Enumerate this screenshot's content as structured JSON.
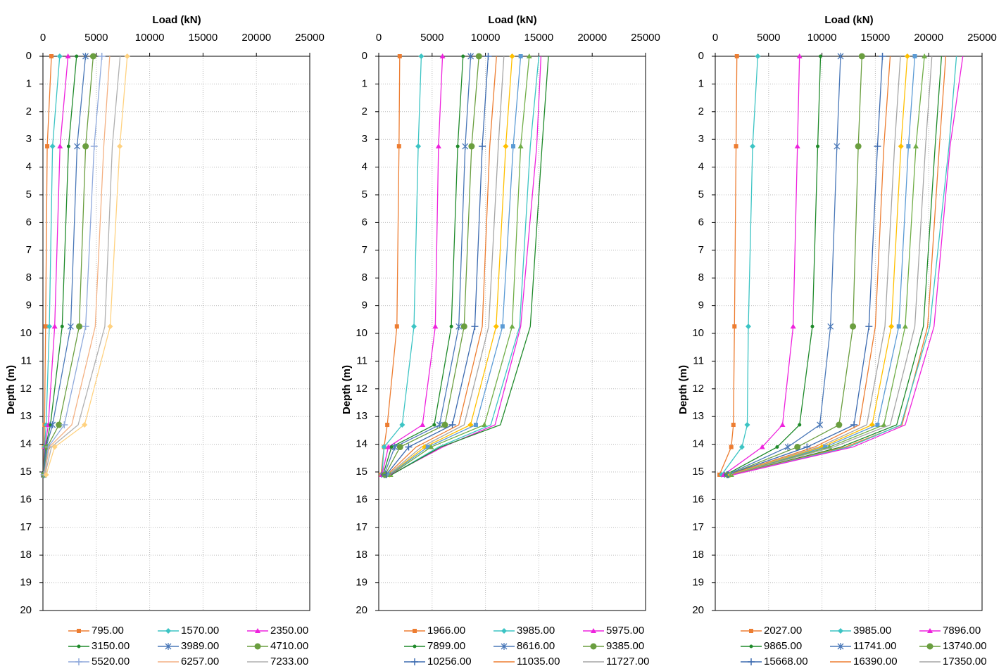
{
  "chart_data": [
    {
      "type": "line",
      "x_label": "Load (kN)",
      "y_label": "Depth (m)",
      "xlim": [
        0,
        25000
      ],
      "xticks": [
        0,
        5000,
        10000,
        15000,
        20000,
        25000
      ],
      "ylim": [
        0,
        20
      ],
      "yticks": [
        0,
        1,
        2,
        3,
        4,
        5,
        6,
        7,
        8,
        9,
        10,
        11,
        12,
        13,
        14,
        15,
        16,
        17,
        18,
        19,
        20
      ],
      "grid": true,
      "legend": "bottom",
      "y": [
        0,
        3.25,
        9.75,
        13.3,
        14.1,
        15.1
      ],
      "series": [
        {
          "name": "795.00",
          "color": "#ed7d31",
          "marker": "square",
          "x": [
            795,
            400,
            250,
            150,
            100,
            50
          ]
        },
        {
          "name": "1570.00",
          "color": "#3cc4c4",
          "marker": "diamond",
          "x": [
            1570,
            900,
            600,
            300,
            150,
            50
          ]
        },
        {
          "name": "2350.00",
          "color": "#ee22dd",
          "marker": "triangle",
          "x": [
            2350,
            1600,
            1100,
            500,
            200,
            50
          ]
        },
        {
          "name": "3150.00",
          "color": "#1f8a2a",
          "marker": "dot",
          "x": [
            3150,
            2400,
            1800,
            700,
            250,
            50
          ]
        },
        {
          "name": "3989.00",
          "color": "#4a78b8",
          "marker": "x",
          "x": [
            3989,
            3200,
            2600,
            900,
            300,
            80
          ]
        },
        {
          "name": "4710.00",
          "color": "#6a9e3f",
          "marker": "circle",
          "x": [
            4710,
            4000,
            3400,
            1500,
            400,
            100
          ]
        },
        {
          "name": "5520.00",
          "color": "#8fa9dc",
          "marker": "plus",
          "x": [
            5520,
            4800,
            4000,
            2000,
            500,
            100
          ]
        },
        {
          "name": "6257.00",
          "color": "#f4b183",
          "marker": "none",
          "x": [
            6257,
            5700,
            4900,
            2700,
            600,
            150
          ]
        },
        {
          "name": "7233.00",
          "color": "#b0b0b0",
          "marker": "none",
          "x": [
            7233,
            6500,
            5800,
            3300,
            800,
            200
          ]
        },
        {
          "color": "#ffd280",
          "marker": "diamond",
          "x": [
            7900,
            7200,
            6300,
            3900,
            1100,
            300
          ]
        }
      ]
    },
    {
      "type": "line",
      "x_label": "Load (kN)",
      "y_label": "Depth (m)",
      "xlim": [
        0,
        25000
      ],
      "xticks": [
        0,
        5000,
        10000,
        15000,
        20000,
        25000
      ],
      "ylim": [
        0,
        20
      ],
      "yticks": [
        0,
        1,
        2,
        3,
        4,
        5,
        6,
        7,
        8,
        9,
        10,
        11,
        12,
        13,
        14,
        15,
        16,
        17,
        18,
        19,
        20
      ],
      "grid": true,
      "legend": "bottom",
      "y": [
        0,
        3.25,
        9.75,
        13.3,
        14.1,
        15.1
      ],
      "series": [
        {
          "name": "1966.00",
          "color": "#ed7d31",
          "marker": "square",
          "x": [
            1966,
            1900,
            1700,
            800,
            500,
            200
          ]
        },
        {
          "name": "3985.00",
          "color": "#3cc4c4",
          "marker": "diamond",
          "x": [
            3985,
            3700,
            3300,
            2200,
            500,
            300
          ]
        },
        {
          "name": "5975.00",
          "color": "#ee22dd",
          "marker": "triangle",
          "x": [
            5975,
            5600,
            5300,
            4100,
            900,
            300
          ]
        },
        {
          "name": "7899.00",
          "color": "#1f8a2a",
          "marker": "dot",
          "x": [
            7899,
            7400,
            6800,
            5200,
            1200,
            400
          ]
        },
        {
          "name": "8616.00",
          "color": "#4a78b8",
          "marker": "x",
          "x": [
            8616,
            8100,
            7500,
            5700,
            1500,
            500
          ]
        },
        {
          "name": "9385.00",
          "color": "#6a9e3f",
          "marker": "circle",
          "x": [
            9385,
            8700,
            8000,
            6200,
            2000,
            600
          ]
        },
        {
          "name": "10256.00",
          "color": "#3d6bb0",
          "marker": "plus",
          "x": [
            10256,
            9700,
            9000,
            6900,
            2800,
            700
          ]
        },
        {
          "name": "11035.00",
          "color": "#ed7d31",
          "marker": "none",
          "x": [
            11035,
            10400,
            9700,
            7500,
            3500,
            800
          ]
        },
        {
          "name": "11727.00",
          "color": "#a5a5a5",
          "marker": "none",
          "x": [
            11727,
            11200,
            10300,
            8000,
            4000,
            900
          ]
        },
        {
          "color": "#ffc000",
          "marker": "diamond",
          "x": [
            12500,
            11900,
            11000,
            8600,
            4300,
            1000
          ]
        },
        {
          "color": "#5b9bd5",
          "marker": "square",
          "x": [
            13300,
            12600,
            11600,
            9100,
            4600,
            1000
          ]
        },
        {
          "color": "#70ad47",
          "marker": "triangle",
          "x": [
            14100,
            13300,
            12500,
            9900,
            4900,
            1100
          ]
        },
        {
          "color": "#3cc4c4",
          "marker": "none",
          "x": [
            15000,
            14200,
            13200,
            10500,
            5600,
            1200
          ]
        },
        {
          "color": "#ee22dd",
          "marker": "none",
          "x": [
            15200,
            14800,
            13300,
            10900,
            6000,
            1100
          ]
        },
        {
          "color": "#1f8a2a",
          "marker": "none",
          "x": [
            15900,
            15300,
            14200,
            11400,
            5800,
            1200
          ]
        }
      ]
    },
    {
      "type": "line",
      "x_label": "Load (kN)",
      "y_label": "Depth (m)",
      "xlim": [
        0,
        25000
      ],
      "xticks": [
        0,
        5000,
        10000,
        15000,
        20000,
        25000
      ],
      "ylim": [
        0,
        20
      ],
      "yticks": [
        0,
        1,
        2,
        3,
        4,
        5,
        6,
        7,
        8,
        9,
        10,
        11,
        12,
        13,
        14,
        15,
        16,
        17,
        18,
        19,
        20
      ],
      "grid": true,
      "legend": "bottom",
      "y": [
        0,
        3.25,
        9.75,
        13.3,
        14.1,
        15.1
      ],
      "series": [
        {
          "name": "2027.00",
          "color": "#ed7d31",
          "marker": "square",
          "x": [
            2027,
            1950,
            1800,
            1700,
            1500,
            400
          ]
        },
        {
          "name": "3985.00",
          "color": "#3cc4c4",
          "marker": "diamond",
          "x": [
            3985,
            3500,
            3100,
            3000,
            2500,
            600
          ]
        },
        {
          "name": "7896.00",
          "color": "#ee22dd",
          "marker": "triangle",
          "x": [
            7896,
            7700,
            7300,
            6300,
            4400,
            800
          ]
        },
        {
          "name": "9865.00",
          "color": "#1f8a2a",
          "marker": "dot",
          "x": [
            9865,
            9600,
            9100,
            7900,
            5800,
            1000
          ]
        },
        {
          "name": "11741.00",
          "color": "#4a78b8",
          "marker": "x",
          "x": [
            11741,
            11400,
            10800,
            9800,
            6800,
            1100
          ]
        },
        {
          "name": "13740.00",
          "color": "#6a9e3f",
          "marker": "circle",
          "x": [
            13740,
            13400,
            12900,
            11600,
            7700,
            1200
          ]
        },
        {
          "name": "15668.00",
          "color": "#3d6bb0",
          "marker": "plus",
          "x": [
            15668,
            15200,
            14400,
            13000,
            8600,
            1200
          ]
        },
        {
          "name": "16390.00",
          "color": "#ed7d31",
          "marker": "none",
          "x": [
            16390,
            15800,
            15000,
            13500,
            9300,
            1300
          ]
        },
        {
          "name": "17350.00",
          "color": "#a5a5a5",
          "marker": "none",
          "x": [
            17350,
            16800,
            15900,
            14200,
            9700,
            1400
          ]
        },
        {
          "color": "#ffc000",
          "marker": "diamond",
          "x": [
            18000,
            17400,
            16500,
            14700,
            10000,
            1400
          ]
        },
        {
          "color": "#5b9bd5",
          "marker": "square",
          "x": [
            18700,
            18100,
            17200,
            15200,
            10300,
            1500
          ]
        },
        {
          "color": "#70ad47",
          "marker": "triangle",
          "x": [
            19600,
            18800,
            17800,
            15800,
            10700,
            1500
          ]
        },
        {
          "color": "#a5a5a5",
          "marker": "none",
          "x": [
            20300,
            19700,
            18700,
            16400,
            11100,
            1500
          ]
        },
        {
          "color": "#1f8a2a",
          "marker": "none",
          "x": [
            21200,
            20600,
            19500,
            17000,
            11800,
            1600
          ]
        },
        {
          "color": "#ed7d31",
          "marker": "none",
          "x": [
            21600,
            21000,
            19900,
            17500,
            12200,
            1600
          ]
        },
        {
          "color": "#3cc4c4",
          "marker": "none",
          "x": [
            22600,
            21900,
            20100,
            17400,
            12500,
            1700
          ]
        },
        {
          "color": "#ee22dd",
          "marker": "none",
          "x": [
            23200,
            22000,
            20500,
            17800,
            12900,
            1700
          ]
        }
      ]
    }
  ]
}
